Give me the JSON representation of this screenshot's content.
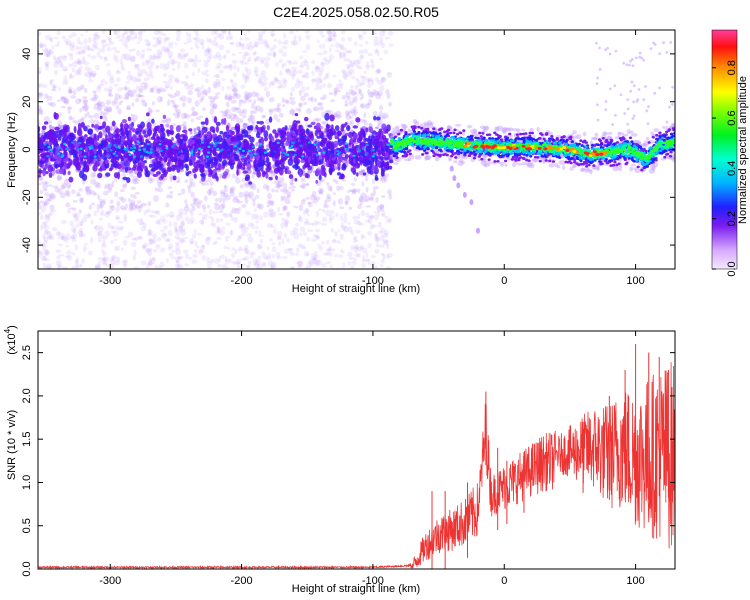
{
  "title": "C2E4.2025.058.02.50.R05",
  "chart_data": [
    {
      "type": "heatmap",
      "xlabel": "Height of straight line (km)",
      "ylabel": "Frequency (Hz)",
      "xlim": [
        -355,
        130
      ],
      "ylim": [
        -50,
        50
      ],
      "xticks": [
        -300,
        -200,
        -100,
        0,
        100
      ],
      "yticks": [
        -40,
        -20,
        0,
        20,
        40
      ],
      "xtick_labels": [
        "-300",
        "-200",
        "-100",
        "0",
        "100"
      ],
      "ytick_labels": [
        "-40",
        "-20",
        "0",
        "20",
        "40"
      ],
      "noise_region_km": [
        -355,
        -86
      ],
      "signal_region_km": [
        -86,
        130
      ],
      "colorbar": {
        "label": "Normalized spectral amplitude",
        "range": [
          0.0,
          0.95
        ],
        "ticks": [
          0.0,
          0.2,
          0.4,
          0.6,
          0.8
        ],
        "tick_labels": [
          "0.0",
          "0.2",
          "0.4",
          "0.6",
          "0.8"
        ]
      },
      "ridge": [
        {
          "x": -85,
          "f": 1
        },
        {
          "x": -70,
          "f": 4
        },
        {
          "x": -50,
          "f": 3
        },
        {
          "x": -30,
          "f": 2
        },
        {
          "x": -10,
          "f": 1
        },
        {
          "x": 10,
          "f": 1
        },
        {
          "x": 30,
          "f": 1
        },
        {
          "x": 50,
          "f": 0
        },
        {
          "x": 65,
          "f": -2
        },
        {
          "x": 80,
          "f": -1
        },
        {
          "x": 95,
          "f": 0
        },
        {
          "x": 108,
          "f": -4
        },
        {
          "x": 118,
          "f": 2
        },
        {
          "x": 130,
          "f": 3
        }
      ]
    },
    {
      "type": "line",
      "xlabel": "Height of straight line (km)",
      "ylabel": "SNR (10 * v/v)",
      "y_multiplier": "(x10",
      "y_multiplier_exp": "4",
      "y_multiplier_close": ")",
      "xlim": [
        -355,
        130
      ],
      "ylim": [
        0,
        2.75
      ],
      "xticks": [
        -300,
        -200,
        -100,
        0,
        100
      ],
      "yticks": [
        0.0,
        0.5,
        1.0,
        1.5,
        2.0,
        2.5
      ],
      "xtick_labels": [
        "-300",
        "-200",
        "-100",
        "0",
        "100"
      ],
      "ytick_labels": [
        "0.0",
        "0.5",
        "1.0",
        "1.5",
        "2.0",
        "2.5"
      ],
      "color": "#ee3333",
      "series": [
        {
          "name": "SNR",
          "x": [
            -355,
            -300,
            -200,
            -100,
            -70,
            -60,
            -50,
            -40,
            -30,
            -20,
            -14,
            -10,
            0,
            10,
            20,
            30,
            40,
            50,
            60,
            70,
            80,
            90,
            100,
            110,
            120,
            130
          ],
          "y": [
            0.02,
            0.02,
            0.02,
            0.02,
            0.04,
            0.3,
            0.45,
            0.5,
            0.6,
            0.75,
            1.7,
            0.9,
            1.0,
            1.1,
            1.2,
            1.3,
            1.33,
            1.35,
            1.38,
            1.4,
            1.3,
            1.4,
            1.3,
            1.3,
            1.35,
            1.3
          ],
          "spikes": [
            {
              "x": -14,
              "y": 2.05
            },
            {
              "x": -55,
              "y": 0.9
            },
            {
              "x": -45,
              "y": 0.9
            },
            {
              "x": -28,
              "y": 1.0
            },
            {
              "x": -5,
              "y": 1.4
            },
            {
              "x": 2,
              "y": 1.25
            },
            {
              "x": 15,
              "y": 1.35
            },
            {
              "x": 60,
              "y": 1.7
            },
            {
              "x": 80,
              "y": 2.0
            },
            {
              "x": 92,
              "y": 2.3
            },
            {
              "x": 100,
              "y": 2.6
            },
            {
              "x": 110,
              "y": 2.5
            },
            {
              "x": 118,
              "y": 2.45
            },
            {
              "x": 125,
              "y": 2.3
            }
          ]
        }
      ]
    }
  ]
}
